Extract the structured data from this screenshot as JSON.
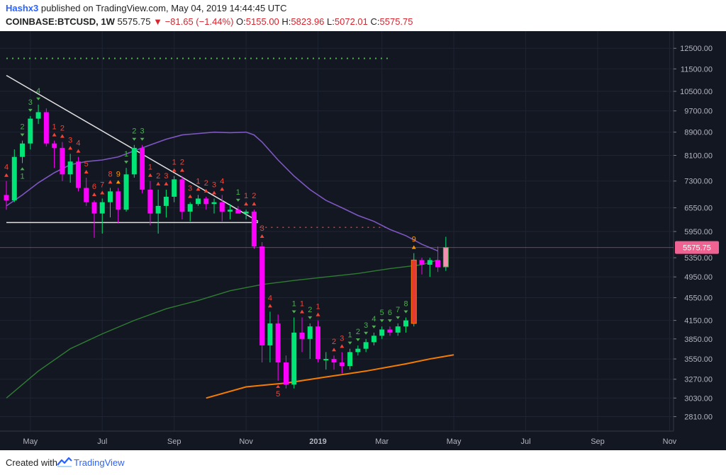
{
  "header": {
    "author": "Hashx3",
    "published_text": "published on TradingView.com, May 04, 2019 14:44:45 UTC",
    "symbol": "COINBASE:BTCUSD, 1W",
    "last": "5575.75",
    "change": "▼ −81.65 (−1.44%)",
    "ohlc": {
      "o_label": "O:",
      "o": "5155.00",
      "h_label": "H:",
      "h": "5823.96",
      "l_label": "L:",
      "l": "5072.01",
      "c_label": "C:",
      "c": "5575.75"
    }
  },
  "footer": {
    "created_with": "Created with",
    "brand": "TradingView"
  },
  "colors": {
    "background": "#131722",
    "up": "#00e676",
    "down": "#ff00ff",
    "ma_slow": "#7e57c2",
    "ma_long": "#2e7d32",
    "support": "#f57c00",
    "price_tag": "#f06292",
    "td_up": "#4caf50",
    "td_down": "#f44336",
    "td_nine": "#ff9800"
  },
  "chart_data": {
    "type": "candlestick",
    "scale": "log",
    "y_ticks": [
      12500,
      11500,
      10500,
      9700,
      8900,
      8100,
      7300,
      6550,
      5950,
      5350,
      4950,
      4550,
      4150,
      3850,
      3550,
      3270,
      3030,
      2810
    ],
    "y_tick_labels": [
      "12500.00",
      "11500.00",
      "10500.00",
      "9700.00",
      "8900.00",
      "8100.00",
      "7300.00",
      "6550.00",
      "5950.00",
      "5350.00",
      "4950.00",
      "4550.00",
      "4150.00",
      "3850.00",
      "3550.00",
      "3270.00",
      "3030.00",
      "2810.00"
    ],
    "ylim": [
      2650,
      13400
    ],
    "x_labels": [
      {
        "label": "May",
        "week": 3
      },
      {
        "label": "Jul",
        "week": 12
      },
      {
        "label": "Sep",
        "week": 21
      },
      {
        "label": "Nov",
        "week": 30
      },
      {
        "label": "2019",
        "week": 39
      },
      {
        "label": "Mar",
        "week": 47
      },
      {
        "label": "May",
        "week": 56
      },
      {
        "label": "Jul",
        "week": 65
      },
      {
        "label": "Sep",
        "week": 74
      },
      {
        "label": "Nov",
        "week": 83
      }
    ],
    "last_price": 5575.75,
    "last_price_label": "5575.75",
    "candles": [
      {
        "o": 6900,
        "h": 7300,
        "l": 6500,
        "c": 6750
      },
      {
        "o": 6750,
        "h": 8300,
        "l": 6700,
        "c": 8050
      },
      {
        "o": 8050,
        "h": 8600,
        "l": 7850,
        "c": 8500
      },
      {
        "o": 8500,
        "h": 9500,
        "l": 8300,
        "c": 9400
      },
      {
        "o": 9400,
        "h": 9950,
        "l": 9200,
        "c": 9650
      },
      {
        "o": 9650,
        "h": 9800,
        "l": 8400,
        "c": 8500
      },
      {
        "o": 8500,
        "h": 8600,
        "l": 7700,
        "c": 8350
      },
      {
        "o": 8350,
        "h": 8550,
        "l": 7300,
        "c": 7500
      },
      {
        "o": 7500,
        "h": 8150,
        "l": 7250,
        "c": 7900
      },
      {
        "o": 7900,
        "h": 8050,
        "l": 7000,
        "c": 7100
      },
      {
        "o": 7100,
        "h": 7400,
        "l": 6600,
        "c": 6700
      },
      {
        "o": 6700,
        "h": 6750,
        "l": 5800,
        "c": 6400
      },
      {
        "o": 6400,
        "h": 6800,
        "l": 5900,
        "c": 6700
      },
      {
        "o": 6700,
        "h": 7100,
        "l": 6300,
        "c": 7000
      },
      {
        "o": 7000,
        "h": 7100,
        "l": 6150,
        "c": 6500
      },
      {
        "o": 6500,
        "h": 7700,
        "l": 6450,
        "c": 7500
      },
      {
        "o": 7500,
        "h": 8450,
        "l": 7400,
        "c": 8350
      },
      {
        "o": 8350,
        "h": 8450,
        "l": 6950,
        "c": 7050
      },
      {
        "o": 7050,
        "h": 7300,
        "l": 6100,
        "c": 6400
      },
      {
        "o": 6400,
        "h": 7050,
        "l": 5900,
        "c": 6600
      },
      {
        "o": 6600,
        "h": 7050,
        "l": 6300,
        "c": 6850
      },
      {
        "o": 6850,
        "h": 7450,
        "l": 6700,
        "c": 7350
      },
      {
        "o": 7350,
        "h": 7450,
        "l": 6250,
        "c": 6450
      },
      {
        "o": 6450,
        "h": 6700,
        "l": 6200,
        "c": 6650
      },
      {
        "o": 6650,
        "h": 6900,
        "l": 6600,
        "c": 6800
      },
      {
        "o": 6800,
        "h": 6850,
        "l": 6500,
        "c": 6650
      },
      {
        "o": 6650,
        "h": 6800,
        "l": 6400,
        "c": 6700
      },
      {
        "o": 6700,
        "h": 6900,
        "l": 6200,
        "c": 6450
      },
      {
        "o": 6450,
        "h": 6650,
        "l": 6250,
        "c": 6500
      },
      {
        "o": 6500,
        "h": 6600,
        "l": 6400,
        "c": 6400
      },
      {
        "o": 6400,
        "h": 6500,
        "l": 6250,
        "c": 6450
      },
      {
        "o": 6450,
        "h": 6500,
        "l": 5550,
        "c": 5600
      },
      {
        "o": 5600,
        "h": 5700,
        "l": 3500,
        "c": 3750
      },
      {
        "o": 3750,
        "h": 4300,
        "l": 3500,
        "c": 4100
      },
      {
        "o": 4100,
        "h": 4250,
        "l": 3250,
        "c": 3500
      },
      {
        "o": 3500,
        "h": 3600,
        "l": 3150,
        "c": 3200
      },
      {
        "o": 3200,
        "h": 4200,
        "l": 3150,
        "c": 3950
      },
      {
        "o": 3950,
        "h": 4200,
        "l": 3650,
        "c": 3850
      },
      {
        "o": 3850,
        "h": 4100,
        "l": 3550,
        "c": 4050
      },
      {
        "o": 4050,
        "h": 4150,
        "l": 3500,
        "c": 3550
      },
      {
        "o": 3550,
        "h": 3650,
        "l": 3400,
        "c": 3550
      },
      {
        "o": 3550,
        "h": 3600,
        "l": 3400,
        "c": 3500
      },
      {
        "o": 3500,
        "h": 3650,
        "l": 3350,
        "c": 3450
      },
      {
        "o": 3450,
        "h": 3700,
        "l": 3400,
        "c": 3650
      },
      {
        "o": 3650,
        "h": 3750,
        "l": 3600,
        "c": 3700
      },
      {
        "o": 3700,
        "h": 3850,
        "l": 3650,
        "c": 3800
      },
      {
        "o": 3800,
        "h": 3950,
        "l": 3750,
        "c": 3900
      },
      {
        "o": 3900,
        "h": 4050,
        "l": 3850,
        "c": 4000
      },
      {
        "o": 4000,
        "h": 4050,
        "l": 3900,
        "c": 3950
      },
      {
        "o": 3950,
        "h": 4100,
        "l": 3900,
        "c": 4050
      },
      {
        "o": 4050,
        "h": 4200,
        "l": 3950,
        "c": 4150
      },
      {
        "o": 4100,
        "h": 5450,
        "l": 4050,
        "c": 5300
      },
      {
        "o": 5300,
        "h": 5350,
        "l": 5000,
        "c": 5200
      },
      {
        "o": 5200,
        "h": 5350,
        "l": 4950,
        "c": 5300
      },
      {
        "o": 5300,
        "h": 5600,
        "l": 5050,
        "c": 5150
      },
      {
        "o": 5155,
        "h": 5823.96,
        "l": 5072.01,
        "c": 5575.75
      }
    ],
    "ma_slow": {
      "name": "",
      "points": [
        [
          0,
          6600
        ],
        [
          2,
          6900
        ],
        [
          4,
          7250
        ],
        [
          6,
          7550
        ],
        [
          8,
          7800
        ],
        [
          10,
          7900
        ],
        [
          12,
          7950
        ],
        [
          14,
          8050
        ],
        [
          16,
          8250
        ],
        [
          18,
          8450
        ],
        [
          20,
          8650
        ],
        [
          22,
          8800
        ],
        [
          24,
          8850
        ],
        [
          26,
          8900
        ],
        [
          28,
          8880
        ],
        [
          30,
          8900
        ],
        [
          31,
          8800
        ],
        [
          32,
          8550
        ],
        [
          34,
          7950
        ],
        [
          36,
          7450
        ],
        [
          38,
          7050
        ],
        [
          40,
          6750
        ],
        [
          42,
          6550
        ],
        [
          44,
          6350
        ],
        [
          46,
          6200
        ],
        [
          48,
          6000
        ],
        [
          50,
          5850
        ],
        [
          52,
          5650
        ],
        [
          54,
          5500
        ]
      ]
    },
    "ma_long": {
      "name": "",
      "points": [
        [
          0,
          3030
        ],
        [
          4,
          3380
        ],
        [
          8,
          3700
        ],
        [
          12,
          3930
        ],
        [
          16,
          4150
        ],
        [
          20,
          4350
        ],
        [
          24,
          4500
        ],
        [
          28,
          4680
        ],
        [
          32,
          4800
        ],
        [
          36,
          4880
        ],
        [
          40,
          4950
        ],
        [
          44,
          5020
        ],
        [
          48,
          5120
        ],
        [
          52,
          5200
        ],
        [
          54,
          5300
        ]
      ]
    },
    "support": {
      "name": "",
      "points": [
        [
          25,
          3030
        ],
        [
          30,
          3170
        ],
        [
          35,
          3220
        ],
        [
          40,
          3300
        ],
        [
          45,
          3380
        ],
        [
          50,
          3480
        ],
        [
          53,
          3550
        ],
        [
          56,
          3610
        ]
      ]
    },
    "trendline_down": {
      "points": [
        [
          0,
          11200
        ],
        [
          31.5,
          6200
        ]
      ]
    },
    "horizontal_support": {
      "points": [
        [
          0,
          6170
        ],
        [
          31.5,
          6170
        ]
      ]
    },
    "dotted_green": {
      "y": 12000,
      "from": 0,
      "to": 48
    },
    "dotted_red": {
      "y": 6050,
      "from": 31,
      "to": 48
    },
    "td_labels": [
      {
        "i": 0,
        "text": "4",
        "pos": "above",
        "kind": "down"
      },
      {
        "i": 2,
        "text": "1",
        "pos": "below",
        "kind": "up"
      },
      {
        "i": 2,
        "text": "2",
        "pos": "above",
        "kind": "up"
      },
      {
        "i": 3,
        "text": "3",
        "pos": "above",
        "kind": "up"
      },
      {
        "i": 4,
        "text": "4",
        "pos": "above",
        "kind": "up"
      },
      {
        "i": 6,
        "text": "1",
        "pos": "above",
        "kind": "down"
      },
      {
        "i": 7,
        "text": "2",
        "pos": "above",
        "kind": "down"
      },
      {
        "i": 8,
        "text": "3",
        "pos": "above",
        "kind": "down"
      },
      {
        "i": 9,
        "text": "4",
        "pos": "above",
        "kind": "down"
      },
      {
        "i": 10,
        "text": "5",
        "pos": "above",
        "kind": "down"
      },
      {
        "i": 11,
        "text": "6",
        "pos": "above",
        "kind": "down"
      },
      {
        "i": 12,
        "text": "7",
        "pos": "above",
        "kind": "down"
      },
      {
        "i": 13,
        "text": "8",
        "pos": "above",
        "kind": "down"
      },
      {
        "i": 14,
        "text": "9",
        "pos": "above",
        "kind": "nine"
      },
      {
        "i": 15,
        "text": "1",
        "pos": "above",
        "kind": "up"
      },
      {
        "i": 16,
        "text": "2",
        "pos": "above",
        "kind": "up"
      },
      {
        "i": 17,
        "text": "3",
        "pos": "above",
        "kind": "up"
      },
      {
        "i": 18,
        "text": "1",
        "pos": "above",
        "kind": "down"
      },
      {
        "i": 19,
        "text": "2",
        "pos": "above",
        "kind": "down"
      },
      {
        "i": 20,
        "text": "3",
        "pos": "above",
        "kind": "down"
      },
      {
        "i": 21,
        "text": "1",
        "pos": "above",
        "kind": "down"
      },
      {
        "i": 22,
        "text": "2",
        "pos": "above",
        "kind": "down"
      },
      {
        "i": 23,
        "text": "3",
        "pos": "above",
        "kind": "down"
      },
      {
        "i": 24,
        "text": "1",
        "pos": "above",
        "kind": "down"
      },
      {
        "i": 25,
        "text": "2",
        "pos": "above",
        "kind": "down"
      },
      {
        "i": 26,
        "text": "3",
        "pos": "above",
        "kind": "down"
      },
      {
        "i": 27,
        "text": "4",
        "pos": "above",
        "kind": "down"
      },
      {
        "i": 29,
        "text": "1",
        "pos": "above",
        "kind": "up"
      },
      {
        "i": 30,
        "text": "1",
        "pos": "above",
        "kind": "down"
      },
      {
        "i": 31,
        "text": "2",
        "pos": "above",
        "kind": "down"
      },
      {
        "i": 32,
        "text": "3",
        "pos": "above",
        "kind": "down"
      },
      {
        "i": 33,
        "text": "4",
        "pos": "above",
        "kind": "down"
      },
      {
        "i": 34,
        "text": "5",
        "pos": "below",
        "kind": "down"
      },
      {
        "i": 36,
        "text": "1",
        "pos": "above",
        "kind": "up"
      },
      {
        "i": 37,
        "text": "1",
        "pos": "above",
        "kind": "down"
      },
      {
        "i": 38,
        "text": "2",
        "pos": "above",
        "kind": "up"
      },
      {
        "i": 39,
        "text": "1",
        "pos": "above",
        "kind": "down"
      },
      {
        "i": 41,
        "text": "2",
        "pos": "above",
        "kind": "down"
      },
      {
        "i": 42,
        "text": "3",
        "pos": "above",
        "kind": "down"
      },
      {
        "i": 43,
        "text": "1",
        "pos": "above",
        "kind": "up"
      },
      {
        "i": 44,
        "text": "2",
        "pos": "above",
        "kind": "up"
      },
      {
        "i": 45,
        "text": "3",
        "pos": "above",
        "kind": "up"
      },
      {
        "i": 46,
        "text": "4",
        "pos": "above",
        "kind": "up"
      },
      {
        "i": 47,
        "text": "5",
        "pos": "above",
        "kind": "up"
      },
      {
        "i": 48,
        "text": "6",
        "pos": "above",
        "kind": "up"
      },
      {
        "i": 49,
        "text": "7",
        "pos": "above",
        "kind": "up"
      },
      {
        "i": 50,
        "text": "8",
        "pos": "above",
        "kind": "up"
      },
      {
        "i": 51,
        "text": "9",
        "pos": "above",
        "kind": "nine"
      }
    ]
  }
}
